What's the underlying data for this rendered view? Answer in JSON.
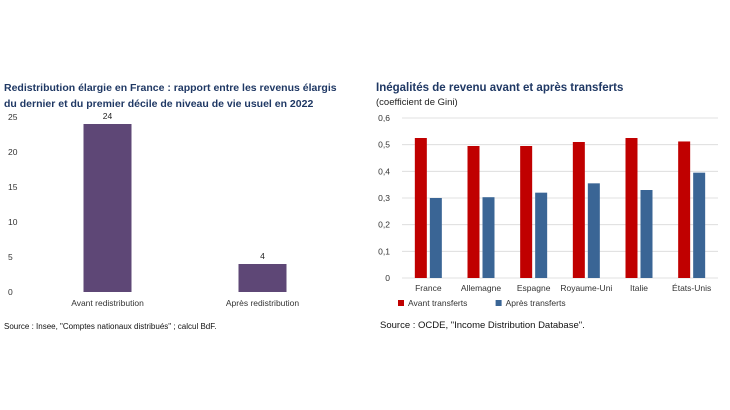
{
  "chart_data": [
    {
      "type": "bar",
      "title": "Redistribution élargie en France : rapport entre les revenus élargis du dernier et du premier décile de niveau de vie usuel en 2022",
      "categories": [
        "Avant redistribution",
        "Après redistribution"
      ],
      "values": [
        24,
        4
      ],
      "data_labels": [
        "24",
        "4"
      ],
      "yticks": [
        "0",
        "5",
        "10",
        "15",
        "20",
        "25"
      ],
      "ylim": [
        0,
        25
      ],
      "grid": false,
      "colors": {
        "bar": "#5e4776"
      },
      "source": "Source : Insee, \"Comptes nationaux distribués\" ; calcul BdF."
    },
    {
      "type": "bar",
      "title": "Inégalités de revenu avant et après transferts",
      "subtitle": "(coefficient de Gini)",
      "categories": [
        "France",
        "Allemagne",
        "Espagne",
        "Royaume-Uni",
        "Italie",
        "États-Unis"
      ],
      "series": [
        {
          "name": "Avant transferts",
          "values": [
            0.525,
            0.495,
            0.495,
            0.51,
            0.525,
            0.512
          ],
          "color": "#c00000"
        },
        {
          "name": "Après transferts",
          "values": [
            0.3,
            0.303,
            0.32,
            0.355,
            0.33,
            0.395
          ],
          "color": "#3a6595"
        }
      ],
      "yticks": [
        "0",
        "0,1",
        "0,2",
        "0,3",
        "0,4",
        "0,5",
        "0,6"
      ],
      "ylim": [
        0,
        0.6
      ],
      "grid": true,
      "legend": "bottom",
      "source": "Source : OCDE, \"Income Distribution Database\"."
    }
  ]
}
